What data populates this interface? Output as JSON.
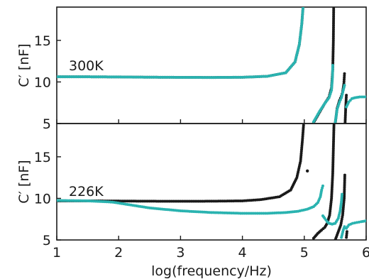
{
  "chart_data": [
    {
      "type": "scatter",
      "title": "",
      "annotation": "300K",
      "xlabel": "",
      "ylabel": "C′ [nF]",
      "xlim": [
        1,
        6
      ],
      "ylim": [
        5,
        19
      ],
      "yticks": [
        5,
        10,
        15
      ],
      "xticks": [
        1,
        2,
        3,
        4,
        5,
        6
      ],
      "grid": false,
      "legend": "none",
      "series": [
        {
          "color": "#1a1a1a",
          "segments": [
            [
              [
                1.0,
                10.62
              ],
              [
                1.5,
                10.62
              ],
              [
                2.0,
                10.6
              ],
              [
                2.5,
                10.57
              ],
              [
                3.0,
                10.55
              ],
              [
                3.5,
                10.54
              ],
              [
                4.0,
                10.56
              ],
              [
                4.4,
                10.68
              ],
              [
                4.7,
                11.1
              ],
              [
                4.85,
                12.4
              ],
              [
                4.92,
                14.5
              ],
              [
                4.96,
                17.0
              ],
              [
                4.98,
                19.0
              ]
            ],
            [
              [
                5.15,
                5.1
              ],
              [
                5.25,
                6.4
              ],
              [
                5.33,
                7.4
              ],
              [
                5.4,
                8.2
              ],
              [
                5.44,
                9.3
              ],
              [
                5.46,
                11.5
              ],
              [
                5.47,
                15.0
              ],
              [
                5.475,
                19.0
              ]
            ],
            [
              [
                5.5,
                5.0
              ],
              [
                5.53,
                6.8
              ],
              [
                5.57,
                7.8
              ],
              [
                5.6,
                8.3
              ],
              [
                5.62,
                8.8
              ],
              [
                5.64,
                9.8
              ],
              [
                5.65,
                11.0
              ]
            ],
            [
              [
                5.66,
                5.1
              ],
              [
                5.67,
                7.0
              ],
              [
                5.68,
                8.4
              ]
            ]
          ]
        },
        {
          "color": "#2ab3b0",
          "segments": [
            [
              [
                1.0,
                10.62
              ],
              [
                1.5,
                10.62
              ],
              [
                2.0,
                10.6
              ],
              [
                2.5,
                10.57
              ],
              [
                3.0,
                10.55
              ],
              [
                3.5,
                10.54
              ],
              [
                4.0,
                10.56
              ],
              [
                4.4,
                10.68
              ],
              [
                4.7,
                11.1
              ],
              [
                4.85,
                12.4
              ],
              [
                4.92,
                14.5
              ],
              [
                4.96,
                17.0
              ],
              [
                4.98,
                19.0
              ]
            ],
            [
              [
                5.15,
                5.2
              ],
              [
                5.25,
                6.5
              ],
              [
                5.33,
                7.4
              ],
              [
                5.4,
                8.1
              ],
              [
                5.44,
                9.0
              ],
              [
                5.455,
                10.5
              ],
              [
                5.46,
                12.0
              ]
            ],
            [
              [
                5.5,
                5.1
              ],
              [
                5.53,
                6.7
              ],
              [
                5.57,
                7.6
              ],
              [
                5.6,
                8.1
              ],
              [
                5.63,
                9.0
              ],
              [
                5.65,
                9.6
              ]
            ],
            [
              [
                5.68,
                7.0
              ],
              [
                5.72,
                7.6
              ],
              [
                5.77,
                8.0
              ],
              [
                5.82,
                8.1
              ],
              [
                5.9,
                8.2
              ],
              [
                6.0,
                8.2
              ]
            ]
          ]
        }
      ]
    },
    {
      "type": "scatter",
      "title": "",
      "annotation": "226K",
      "xlabel": "log(frequency/Hz)",
      "ylabel": "C′ [nF]",
      "xlim": [
        1,
        6
      ],
      "ylim": [
        5,
        19
      ],
      "yticks": [
        5,
        10,
        15
      ],
      "xticks": [
        1,
        2,
        3,
        4,
        5,
        6
      ],
      "xticklabels": [
        "1",
        "2",
        "3",
        "4",
        "5",
        "6"
      ],
      "grid": false,
      "legend": "none",
      "series": [
        {
          "color": "#1a1a1a",
          "segments": [
            [
              [
                1.0,
                9.7
              ],
              [
                1.5,
                9.7
              ],
              [
                2.0,
                9.68
              ],
              [
                2.5,
                9.66
              ],
              [
                3.0,
                9.65
              ],
              [
                3.5,
                9.66
              ],
              [
                4.0,
                9.7
              ],
              [
                4.3,
                9.85
              ],
              [
                4.6,
                10.2
              ],
              [
                4.78,
                11.0
              ],
              [
                4.88,
                12.5
              ],
              [
                4.94,
                14.5
              ],
              [
                4.97,
                17.0
              ],
              [
                4.99,
                19.0
              ]
            ],
            [
              [
                5.05,
                13.3
              ]
            ],
            [
              [
                5.15,
                5.2
              ],
              [
                5.22,
                5.8
              ],
              [
                5.28,
                6.2
              ],
              [
                5.33,
                6.5
              ],
              [
                5.37,
                7.0
              ],
              [
                5.41,
                8.0
              ],
              [
                5.44,
                10.0
              ],
              [
                5.46,
                13.0
              ],
              [
                5.47,
                16.0
              ],
              [
                5.48,
                19.0
              ]
            ],
            [
              [
                5.5,
                5.0
              ],
              [
                5.55,
                6.0
              ],
              [
                5.59,
                6.8
              ],
              [
                5.62,
                8.0
              ],
              [
                5.645,
                10.0
              ],
              [
                5.655,
                12.8
              ]
            ],
            [
              [
                5.68,
                5.3
              ],
              [
                5.69,
                6.0
              ]
            ]
          ]
        },
        {
          "color": "#2ab3b0",
          "segments": [
            [
              [
                1.0,
                9.75
              ],
              [
                1.5,
                9.7
              ],
              [
                1.9,
                9.55
              ],
              [
                2.2,
                9.2
              ],
              [
                2.5,
                8.85
              ],
              [
                3.0,
                8.5
              ],
              [
                3.5,
                8.3
              ],
              [
                4.0,
                8.2
              ],
              [
                4.4,
                8.2
              ],
              [
                4.7,
                8.3
              ],
              [
                4.9,
                8.45
              ],
              [
                5.05,
                8.7
              ],
              [
                5.15,
                9.0
              ],
              [
                5.22,
                9.5
              ],
              [
                5.26,
                10.2
              ],
              [
                5.28,
                11.0
              ],
              [
                5.3,
                11.5
              ]
            ],
            [
              [
                5.3,
                7.9
              ],
              [
                5.33,
                7.6
              ],
              [
                5.37,
                7.2
              ],
              [
                5.4,
                7.0
              ],
              [
                5.45,
                6.9
              ],
              [
                5.5,
                7.0
              ],
              [
                5.55,
                7.6
              ],
              [
                5.58,
                8.5
              ],
              [
                5.6,
                9.6
              ],
              [
                5.61,
                10.5
              ]
            ],
            [
              [
                5.6,
                5.3
              ],
              [
                5.63,
                6.2
              ],
              [
                5.65,
                6.6
              ]
            ],
            [
              [
                5.68,
                6.4
              ],
              [
                5.72,
                6.8
              ],
              [
                5.78,
                7.0
              ],
              [
                5.85,
                7.1
              ],
              [
                5.92,
                7.2
              ],
              [
                6.0,
                7.3
              ]
            ]
          ]
        }
      ]
    }
  ]
}
